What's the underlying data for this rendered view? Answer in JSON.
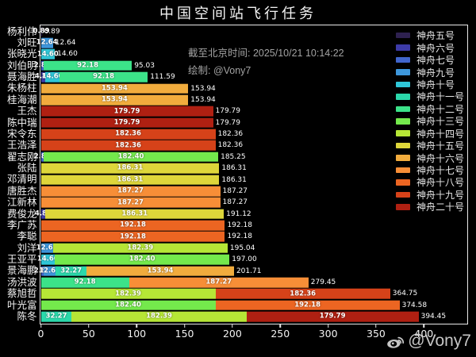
{
  "title": "中国空间站飞行任务",
  "annotation": {
    "line1": "截至北京时间: 2025/10/21 10:14:22",
    "line2": "绘制: @Vony7"
  },
  "watermark": {
    "handle": "@Vony7",
    "icon": "weibo-icon",
    "color": "#c6c6c6"
  },
  "colors": {
    "background": "#000000",
    "axis": "#e9e9e9",
    "text": "#f2f2f2",
    "annotation_text": "#a3a3a3"
  },
  "missions": [
    {
      "id": "sz5",
      "label": "神舟五号",
      "color": "#2e2150"
    },
    {
      "id": "sz6",
      "label": "神舟六号",
      "color": "#3d3ba8"
    },
    {
      "id": "sz7",
      "label": "神舟七号",
      "color": "#4166cd"
    },
    {
      "id": "sz9",
      "label": "神舟九号",
      "color": "#3e97dc"
    },
    {
      "id": "sz10",
      "label": "神舟十号",
      "color": "#2fc7d8"
    },
    {
      "id": "sz11",
      "label": "神舟十一号",
      "color": "#2bd8ab"
    },
    {
      "id": "sz12",
      "label": "神舟十二号",
      "color": "#3ce389"
    },
    {
      "id": "sz13",
      "label": "神舟十三号",
      "color": "#74e94c"
    },
    {
      "id": "sz14",
      "label": "神舟十四号",
      "color": "#b6e636"
    },
    {
      "id": "sz15",
      "label": "神舟十五号",
      "color": "#ded63a"
    },
    {
      "id": "sz16",
      "label": "神舟十六号",
      "color": "#f1ac3d"
    },
    {
      "id": "sz17",
      "label": "神舟十七号",
      "color": "#f78e37"
    },
    {
      "id": "sz18",
      "label": "神舟十八号",
      "color": "#ec6522"
    },
    {
      "id": "sz19",
      "label": "神舟十九号",
      "color": "#d64219"
    },
    {
      "id": "sz20",
      "label": "神舟二十号",
      "color": "#af2012"
    }
  ],
  "rows": [
    {
      "name": "杨利伟",
      "total": "0.89",
      "segments": [
        {
          "mission": "sz5",
          "value": 0.89,
          "label": "0.89"
        }
      ]
    },
    {
      "name": "刘旺",
      "total": "12.64",
      "segments": [
        {
          "mission": "sz9",
          "value": 12.64,
          "label": "12.64"
        }
      ]
    },
    {
      "name": "张晓光",
      "total": "14.60",
      "segments": [
        {
          "mission": "sz10",
          "value": 14.6,
          "label": "14.60"
        }
      ]
    },
    {
      "name": "刘伯明",
      "total": "95.03",
      "segments": [
        {
          "mission": "sz7",
          "value": 2.85,
          "label": "2.85"
        },
        {
          "mission": "sz12",
          "value": 92.18,
          "label": "92.18"
        }
      ]
    },
    {
      "name": "聂海胜",
      "total": "111.59",
      "segments": [
        {
          "mission": "sz6",
          "value": 4.81,
          "label": "4.81"
        },
        {
          "mission": "sz10",
          "value": 14.6,
          "label": "14.60"
        },
        {
          "mission": "sz12",
          "value": 92.18,
          "label": "92.18"
        }
      ]
    },
    {
      "name": "朱杨柱",
      "total": "153.94",
      "segments": [
        {
          "mission": "sz16",
          "value": 153.94,
          "label": "153.94"
        }
      ]
    },
    {
      "name": "桂海潮",
      "total": "153.94",
      "segments": [
        {
          "mission": "sz16",
          "value": 153.94,
          "label": "153.94"
        }
      ]
    },
    {
      "name": "王杰",
      "total": "179.79",
      "segments": [
        {
          "mission": "sz20",
          "value": 179.79,
          "label": "179.79"
        }
      ]
    },
    {
      "name": "陈中瑞",
      "total": "179.79",
      "segments": [
        {
          "mission": "sz20",
          "value": 179.79,
          "label": "179.79"
        }
      ]
    },
    {
      "name": "宋令东",
      "total": "182.36",
      "segments": [
        {
          "mission": "sz19",
          "value": 182.36,
          "label": "182.36"
        }
      ]
    },
    {
      "name": "王浩泽",
      "total": "182.36",
      "segments": [
        {
          "mission": "sz19",
          "value": 182.36,
          "label": "182.36"
        }
      ]
    },
    {
      "name": "翟志刚",
      "total": "185.25",
      "segments": [
        {
          "mission": "sz7",
          "value": 2.85,
          "label": "2.85"
        },
        {
          "mission": "sz13",
          "value": 182.4,
          "label": "182.40"
        }
      ]
    },
    {
      "name": "张陆",
      "total": "186.31",
      "segments": [
        {
          "mission": "sz15",
          "value": 186.31,
          "label": "186.31"
        }
      ]
    },
    {
      "name": "邓清明",
      "total": "186.31",
      "segments": [
        {
          "mission": "sz15",
          "value": 186.31,
          "label": "186.31"
        }
      ]
    },
    {
      "name": "唐胜杰",
      "total": "187.27",
      "segments": [
        {
          "mission": "sz17",
          "value": 187.27,
          "label": "187.27"
        }
      ]
    },
    {
      "name": "江新林",
      "total": "187.27",
      "segments": [
        {
          "mission": "sz17",
          "value": 187.27,
          "label": "187.27"
        }
      ]
    },
    {
      "name": "费俊龙",
      "total": "191.12",
      "segments": [
        {
          "mission": "sz6",
          "value": 4.81,
          "label": "4.81"
        },
        {
          "mission": "sz15",
          "value": 186.31,
          "label": "186.31"
        }
      ]
    },
    {
      "name": "李广苏",
      "total": "192.18",
      "segments": [
        {
          "mission": "sz18",
          "value": 192.18,
          "label": "192.18"
        }
      ]
    },
    {
      "name": "李聪",
      "total": "192.18",
      "segments": [
        {
          "mission": "sz18",
          "value": 192.18,
          "label": "192.18"
        }
      ]
    },
    {
      "name": "刘洋",
      "total": "195.04",
      "segments": [
        {
          "mission": "sz9",
          "value": 12.64,
          "label": "12.64"
        },
        {
          "mission": "sz14",
          "value": 182.39,
          "label": "182.39"
        }
      ]
    },
    {
      "name": "王亚平",
      "total": "197.00",
      "segments": [
        {
          "mission": "sz10",
          "value": 14.6,
          "label": "14.60"
        },
        {
          "mission": "sz13",
          "value": 182.4,
          "label": "182.40"
        }
      ]
    },
    {
      "name": "景海鹏",
      "total": "201.71",
      "segments": [
        {
          "mission": "sz7",
          "value": 2.85,
          "label": "2.85"
        },
        {
          "mission": "sz9",
          "value": 12.64,
          "label": "12.64"
        },
        {
          "mission": "sz11",
          "value": 32.27,
          "label": "32.27"
        },
        {
          "mission": "sz16",
          "value": 153.94,
          "label": "153.94"
        }
      ]
    },
    {
      "name": "汤洪波",
      "total": "279.45",
      "segments": [
        {
          "mission": "sz12",
          "value": 92.18,
          "label": "92.18"
        },
        {
          "mission": "sz17",
          "value": 187.27,
          "label": "187.27"
        }
      ]
    },
    {
      "name": "蔡旭哲",
      "total": "364.75",
      "segments": [
        {
          "mission": "sz14",
          "value": 182.39,
          "label": "182.39"
        },
        {
          "mission": "sz19",
          "value": 182.36,
          "label": "182.36"
        }
      ]
    },
    {
      "name": "叶光富",
      "total": "374.58",
      "segments": [
        {
          "mission": "sz13",
          "value": 182.4,
          "label": "182.40"
        },
        {
          "mission": "sz18",
          "value": 192.18,
          "label": "192.18"
        }
      ]
    },
    {
      "name": "陈冬",
      "total": "394.45",
      "segments": [
        {
          "mission": "sz11",
          "value": 32.27,
          "label": "32.27"
        },
        {
          "mission": "sz14",
          "value": 182.39,
          "label": "182.39"
        },
        {
          "mission": "sz20",
          "value": 179.79,
          "label": "179.79"
        }
      ]
    }
  ],
  "axis": {
    "ticks": [
      {
        "value": 0,
        "label": "0"
      },
      {
        "value": 50,
        "label": "50"
      },
      {
        "value": 100,
        "label": "100"
      },
      {
        "value": 150,
        "label": "150"
      },
      {
        "value": 200,
        "label": "200"
      },
      {
        "value": 250,
        "label": "250"
      },
      {
        "value": 300,
        "label": "300"
      },
      {
        "value": 350,
        "label": "350"
      },
      {
        "value": 400,
        "label": "400"
      }
    ]
  },
  "chart_data": {
    "type": "bar",
    "orientation": "horizontal",
    "stacked": true,
    "title": "中国空间站飞行任务",
    "xlabel": "",
    "ylabel": "",
    "xlim": [
      0,
      445
    ],
    "grid": false,
    "legend_position": "right",
    "annotations": [
      "截至北京时间: 2025/10/21 10:14:22",
      "绘制: @Vony7"
    ],
    "categories": [
      "杨利伟",
      "刘旺",
      "张晓光",
      "刘伯明",
      "聂海胜",
      "朱杨柱",
      "桂海潮",
      "王杰",
      "陈中瑞",
      "宋令东",
      "王浩泽",
      "翟志刚",
      "张陆",
      "邓清明",
      "唐胜杰",
      "江新林",
      "费俊龙",
      "李广苏",
      "李聪",
      "刘洋",
      "王亚平",
      "景海鹏",
      "汤洪波",
      "蔡旭哲",
      "叶光富",
      "陈冬"
    ],
    "totals": [
      0.89,
      12.64,
      14.6,
      95.03,
      111.59,
      153.94,
      153.94,
      179.79,
      179.79,
      182.36,
      182.36,
      185.25,
      186.31,
      186.31,
      187.27,
      187.27,
      191.12,
      192.18,
      192.18,
      195.04,
      197.0,
      201.71,
      279.45,
      364.75,
      374.58,
      394.45
    ],
    "series": [
      {
        "name": "神舟五号",
        "values": [
          0.89,
          0,
          0,
          0,
          0,
          0,
          0,
          0,
          0,
          0,
          0,
          0,
          0,
          0,
          0,
          0,
          0,
          0,
          0,
          0,
          0,
          0,
          0,
          0,
          0,
          0
        ]
      },
      {
        "name": "神舟六号",
        "values": [
          0,
          0,
          0,
          0,
          4.81,
          0,
          0,
          0,
          0,
          0,
          0,
          0,
          0,
          0,
          0,
          0,
          4.81,
          0,
          0,
          0,
          0,
          0,
          0,
          0,
          0,
          0
        ]
      },
      {
        "name": "神舟七号",
        "values": [
          0,
          0,
          0,
          2.85,
          0,
          0,
          0,
          0,
          0,
          0,
          0,
          2.85,
          0,
          0,
          0,
          0,
          0,
          0,
          0,
          0,
          0,
          2.85,
          0,
          0,
          0,
          0
        ]
      },
      {
        "name": "神舟九号",
        "values": [
          0,
          12.64,
          0,
          0,
          0,
          0,
          0,
          0,
          0,
          0,
          0,
          0,
          0,
          0,
          0,
          0,
          0,
          0,
          0,
          12.64,
          0,
          12.64,
          0,
          0,
          0,
          0
        ]
      },
      {
        "name": "神舟十号",
        "values": [
          0,
          0,
          14.6,
          0,
          14.6,
          0,
          0,
          0,
          0,
          0,
          0,
          0,
          0,
          0,
          0,
          0,
          0,
          0,
          0,
          0,
          14.6,
          0,
          0,
          0,
          0,
          0
        ]
      },
      {
        "name": "神舟十一号",
        "values": [
          0,
          0,
          0,
          0,
          0,
          0,
          0,
          0,
          0,
          0,
          0,
          0,
          0,
          0,
          0,
          0,
          0,
          0,
          0,
          0,
          0,
          32.27,
          0,
          0,
          0,
          32.27
        ]
      },
      {
        "name": "神舟十二号",
        "values": [
          0,
          0,
          0,
          92.18,
          92.18,
          0,
          0,
          0,
          0,
          0,
          0,
          0,
          0,
          0,
          0,
          0,
          0,
          0,
          0,
          0,
          0,
          0,
          92.18,
          0,
          0,
          0
        ]
      },
      {
        "name": "神舟十三号",
        "values": [
          0,
          0,
          0,
          0,
          0,
          0,
          0,
          0,
          0,
          0,
          0,
          182.4,
          0,
          0,
          0,
          0,
          0,
          0,
          0,
          0,
          182.4,
          0,
          0,
          0,
          182.4,
          0
        ]
      },
      {
        "name": "神舟十四号",
        "values": [
          0,
          0,
          0,
          0,
          0,
          0,
          0,
          0,
          0,
          0,
          0,
          0,
          0,
          0,
          0,
          0,
          0,
          0,
          0,
          182.39,
          0,
          0,
          0,
          182.39,
          0,
          182.39
        ]
      },
      {
        "name": "神舟十五号",
        "values": [
          0,
          0,
          0,
          0,
          0,
          0,
          0,
          0,
          0,
          0,
          0,
          0,
          186.31,
          186.31,
          0,
          0,
          186.31,
          0,
          0,
          0,
          0,
          0,
          0,
          0,
          0,
          0
        ]
      },
      {
        "name": "神舟十六号",
        "values": [
          0,
          0,
          0,
          0,
          0,
          153.94,
          153.94,
          0,
          0,
          0,
          0,
          0,
          0,
          0,
          0,
          0,
          0,
          0,
          0,
          0,
          0,
          153.94,
          0,
          0,
          0,
          0
        ]
      },
      {
        "name": "神舟十七号",
        "values": [
          0,
          0,
          0,
          0,
          0,
          0,
          0,
          0,
          0,
          0,
          0,
          0,
          0,
          0,
          187.27,
          187.27,
          0,
          0,
          0,
          0,
          0,
          0,
          187.27,
          0,
          0,
          0
        ]
      },
      {
        "name": "神舟十八号",
        "values": [
          0,
          0,
          0,
          0,
          0,
          0,
          0,
          0,
          0,
          0,
          0,
          0,
          0,
          0,
          0,
          0,
          0,
          192.18,
          192.18,
          0,
          0,
          0,
          0,
          0,
          192.18,
          0
        ]
      },
      {
        "name": "神舟十九号",
        "values": [
          0,
          0,
          0,
          0,
          0,
          0,
          0,
          0,
          0,
          182.36,
          182.36,
          0,
          0,
          0,
          0,
          0,
          0,
          0,
          0,
          0,
          0,
          0,
          0,
          182.36,
          0,
          0
        ]
      },
      {
        "name": "神舟二十号",
        "values": [
          0,
          0,
          0,
          0,
          0,
          0,
          0,
          179.79,
          179.79,
          0,
          0,
          0,
          0,
          0,
          0,
          0,
          0,
          0,
          0,
          0,
          0,
          0,
          0,
          0,
          0,
          179.79
        ]
      }
    ]
  }
}
